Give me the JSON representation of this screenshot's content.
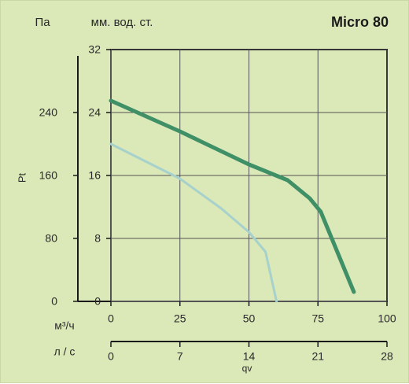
{
  "header": {
    "left_unit": "Па",
    "right_unit": "мм. вод. ст.",
    "title": "Micro 80"
  },
  "axes": {
    "y_label": "Pt",
    "x_label": "qv",
    "flow_units": {
      "m3h": "м³/ч",
      "ls": "л / с"
    }
  },
  "colors": {
    "background": "#dbe8b8",
    "grid": "#545454",
    "axis": "#1a1a1a",
    "dark_curve": "#3f8f67",
    "light_curve": "#a7d1cc"
  },
  "chart_data": {
    "type": "line",
    "title": "Micro 80",
    "xlabel": "qv",
    "ylabel": "Pt",
    "xlim": [
      0,
      100
    ],
    "ylim": [
      0,
      32
    ],
    "x_ticks": [
      "0",
      "25",
      "50",
      "75",
      "100"
    ],
    "y_ticks_mm": [
      "0",
      "8",
      "16",
      "24",
      "32"
    ],
    "y_ticks_pa": [
      "0",
      "80",
      "160",
      "240"
    ],
    "secondary_x_ticks": [
      "0",
      "7",
      "14",
      "21",
      "28"
    ],
    "grid": true,
    "series": [
      {
        "values": [
          {
            "x": 0,
            "y": 25.5
          },
          {
            "x": 25,
            "y": 21.6
          },
          {
            "x": 50,
            "y": 17.4
          },
          {
            "x": 64,
            "y": 15.4
          },
          {
            "x": 72,
            "y": 13.1
          },
          {
            "x": 76,
            "y": 11.4
          },
          {
            "x": 88,
            "y": 1.2
          }
        ]
      },
      {
        "values": [
          {
            "x": 0,
            "y": 20.0
          },
          {
            "x": 25,
            "y": 15.6
          },
          {
            "x": 40,
            "y": 11.8
          },
          {
            "x": 50,
            "y": 8.8
          },
          {
            "x": 56,
            "y": 6.3
          },
          {
            "x": 60,
            "y": 0.0
          }
        ]
      }
    ]
  }
}
